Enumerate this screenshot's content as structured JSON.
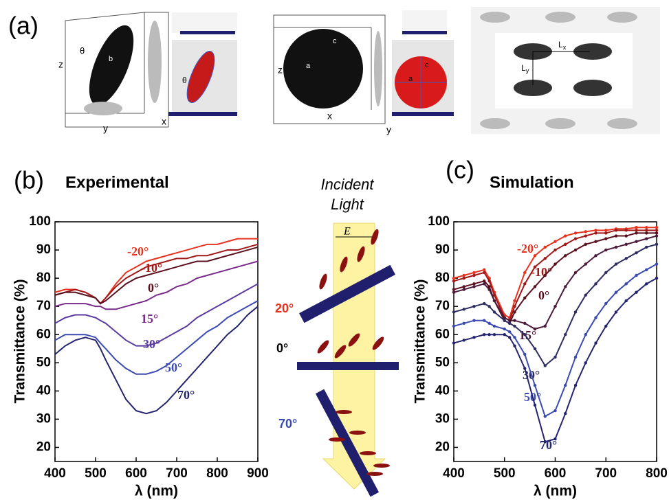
{
  "panel_a": {
    "label": "(a)",
    "axis_labels": [
      "z",
      "y",
      "x",
      "z",
      "x",
      "y"
    ],
    "symbols": [
      "θ",
      "b",
      "θ",
      "a",
      "c",
      "a",
      "c"
    ],
    "lattice": [
      "L",
      "x",
      "L",
      "y"
    ]
  },
  "schematic": {
    "title_lines": [
      "Incident",
      "Light"
    ],
    "field_label": "E",
    "angle_labels": [
      "20°",
      "0°",
      "70°"
    ]
  },
  "chart_data": [
    {
      "type": "line",
      "panel_label": "(b)",
      "title": "Experimental",
      "x_label": "λ (nm)",
      "y_label": "Transmittance (%)",
      "markers": false,
      "x": [
        400,
        425,
        450,
        475,
        500,
        512,
        525,
        550,
        575,
        600,
        625,
        650,
        675,
        700,
        725,
        750,
        775,
        800,
        825,
        850,
        875,
        900
      ],
      "xlim": [
        400,
        900
      ],
      "xticks": [
        400,
        500,
        600,
        700,
        800,
        900
      ],
      "ylim": [
        15,
        100
      ],
      "yticks": [
        20,
        30,
        40,
        50,
        60,
        70,
        80,
        90,
        100
      ],
      "series": [
        {
          "name": "-20°",
          "color": "#e8321e",
          "values": [
            75,
            76,
            76,
            75,
            73,
            71,
            73,
            78,
            82,
            84,
            86,
            87,
            88,
            89,
            90,
            91,
            92,
            92,
            93,
            94,
            94,
            94
          ]
        },
        {
          "name": "-10°",
          "color": "#a01818",
          "values": [
            74,
            75,
            76,
            75,
            73,
            71,
            73,
            77,
            80,
            82,
            84,
            85,
            86,
            87,
            87,
            88,
            88,
            89,
            90,
            90,
            91,
            92
          ]
        },
        {
          "name": "0°",
          "color": "#5a0f1e",
          "values": [
            74,
            75,
            75,
            74,
            73,
            71,
            72,
            75,
            78,
            80,
            81,
            82,
            83,
            84,
            85,
            86,
            86,
            87,
            88,
            89,
            90,
            91
          ]
        },
        {
          "name": "15°",
          "color": "#7a2a8a",
          "values": [
            70,
            71,
            71,
            71,
            70,
            70,
            69,
            69,
            70,
            71,
            72,
            74,
            75,
            77,
            78,
            80,
            81,
            82,
            83,
            84,
            85,
            86
          ]
        },
        {
          "name": "30°",
          "color": "#5a3aa0",
          "values": [
            64,
            66,
            67,
            67,
            66,
            65,
            64,
            61,
            58,
            56,
            56,
            57,
            59,
            61,
            63,
            66,
            68,
            70,
            72,
            74,
            76,
            78
          ]
        },
        {
          "name": "50°",
          "color": "#3a4ab0",
          "values": [
            58,
            60,
            60,
            60,
            59,
            57,
            55,
            51,
            48,
            46,
            46,
            47,
            49,
            52,
            55,
            58,
            61,
            63,
            66,
            68,
            70,
            72
          ]
        },
        {
          "name": "70°",
          "color": "#23236e",
          "values": [
            53,
            56,
            58,
            59,
            58,
            55,
            51,
            44,
            37,
            33,
            32,
            33,
            36,
            40,
            44,
            48,
            52,
            56,
            60,
            63,
            67,
            70
          ]
        }
      ]
    },
    {
      "type": "line",
      "panel_label": "(c)",
      "title": "Simulation",
      "x_label": "λ (nm)",
      "y_label": "Transmittance (%)",
      "markers": true,
      "x": [
        400,
        420,
        440,
        460,
        470,
        480,
        500,
        510,
        520,
        540,
        560,
        580,
        600,
        620,
        640,
        660,
        680,
        700,
        720,
        740,
        760,
        780,
        800
      ],
      "xlim": [
        400,
        800
      ],
      "xticks": [
        400,
        500,
        600,
        700,
        800
      ],
      "ylim": [
        15,
        100
      ],
      "yticks": [
        20,
        30,
        40,
        50,
        60,
        70,
        80,
        90,
        100
      ],
      "series": [
        {
          "name": "-20°",
          "color": "#e8321e",
          "values": [
            80,
            81,
            82,
            83,
            80,
            75,
            67,
            66,
            72,
            82,
            88,
            91,
            93,
            95,
            96,
            96.5,
            97,
            97,
            97.5,
            97.5,
            98,
            98,
            98
          ]
        },
        {
          "name": "-10°",
          "color": "#a01818",
          "values": [
            79,
            80,
            81,
            82,
            79,
            74,
            66,
            65,
            70,
            78,
            84,
            87,
            90,
            92,
            94,
            95,
            96,
            96,
            97,
            97,
            97,
            97,
            97
          ]
        },
        {
          "name": "0°",
          "color": "#5a0f1e",
          "values": [
            76,
            77,
            78,
            79,
            77,
            72,
            65,
            64,
            68,
            73,
            77,
            81,
            85,
            88,
            90,
            92,
            93,
            94,
            95,
            95,
            96,
            96,
            96
          ]
        },
        {
          "name": "15°",
          "color": "#4a1a3a",
          "values": [
            75,
            76,
            77,
            78,
            76,
            72,
            66,
            65,
            65,
            64,
            62,
            63,
            70,
            77,
            82,
            85,
            88,
            90,
            91,
            92,
            93,
            94,
            95
          ]
        },
        {
          "name": "30°",
          "color": "#2c2c60",
          "values": [
            68,
            69,
            70,
            71,
            70,
            68,
            65,
            64,
            63,
            60,
            55,
            49,
            52,
            60,
            68,
            74,
            78,
            82,
            85,
            87,
            89,
            91,
            92
          ]
        },
        {
          "name": "50°",
          "color": "#3a4ab0",
          "values": [
            63,
            64,
            65,
            65,
            64,
            63,
            62,
            61,
            59,
            53,
            42,
            31,
            33,
            42,
            52,
            60,
            66,
            71,
            75,
            78,
            81,
            83,
            85
          ]
        },
        {
          "name": "70°",
          "color": "#23236e",
          "values": [
            57,
            58,
            59,
            60,
            60,
            60,
            60,
            59,
            56,
            48,
            35,
            22,
            23,
            32,
            42,
            50,
            57,
            63,
            68,
            72,
            75,
            78,
            80
          ]
        }
      ]
    }
  ]
}
